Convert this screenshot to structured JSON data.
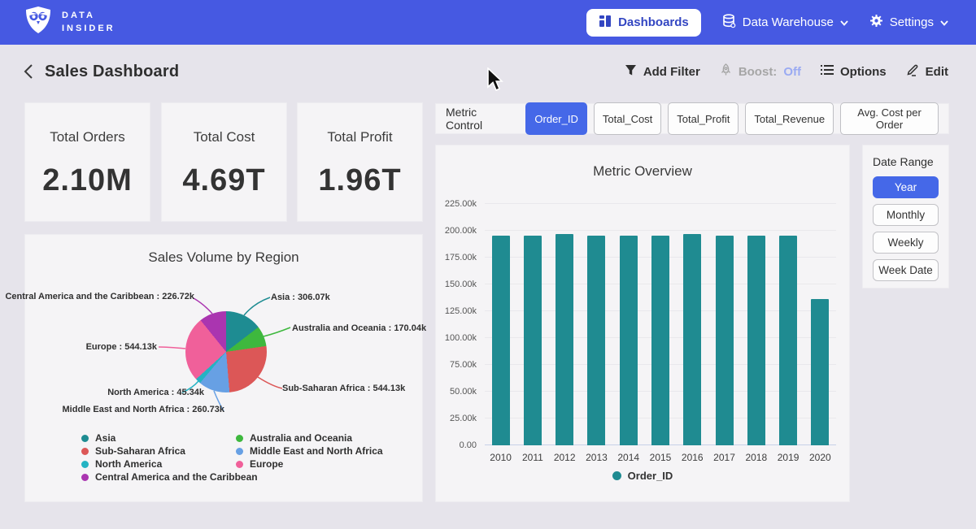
{
  "colors": {
    "nav_blue": "#4659e2",
    "accent_blue": "#4568e8",
    "boost_off": "#9aaaf2",
    "bar_teal": "#1f8b91"
  },
  "nav": {
    "brand": {
      "line1": "DATA",
      "line2": "INSIDER"
    },
    "items": [
      {
        "label": "Dashboards",
        "icon": "dashboard-grid-icon"
      },
      {
        "label": "Data Warehouse",
        "icon": "database-icon"
      },
      {
        "label": "Settings",
        "icon": "gear-icon"
      }
    ]
  },
  "header": {
    "title": "Sales Dashboard",
    "actions": {
      "add_filter": "Add Filter",
      "boost_label": "Boost:",
      "boost_value": "Off",
      "options": "Options",
      "edit": "Edit"
    }
  },
  "kpis": [
    {
      "label": "Total Orders",
      "value": "2.10M"
    },
    {
      "label": "Total Cost",
      "value": "4.69T"
    },
    {
      "label": "Total Profit",
      "value": "1.96T"
    }
  ],
  "metric_control": {
    "label": "Metric Control",
    "options": [
      {
        "label": "Order_ID",
        "selected": true
      },
      {
        "label": "Total_Cost",
        "selected": false
      },
      {
        "label": "Total_Profit",
        "selected": false
      },
      {
        "label": "Total_Revenue",
        "selected": false
      },
      {
        "label": "Avg. Cost per Order",
        "selected": false
      }
    ]
  },
  "date_range": {
    "label": "Date Range",
    "options": [
      {
        "label": "Year",
        "selected": true
      },
      {
        "label": "Monthly",
        "selected": false
      },
      {
        "label": "Weekly",
        "selected": false
      },
      {
        "label": "Week Date",
        "selected": false
      }
    ]
  },
  "chart_data": [
    {
      "type": "bar",
      "title": "Metric Overview",
      "categories": [
        "2010",
        "2011",
        "2012",
        "2013",
        "2014",
        "2015",
        "2016",
        "2017",
        "2018",
        "2019",
        "2020"
      ],
      "series": [
        {
          "name": "Order_ID",
          "color": "#1f8b91",
          "values": [
            195500,
            195400,
            196900,
            195600,
            195400,
            195500,
            197000,
            195700,
            195500,
            195600,
            136300
          ]
        }
      ],
      "xlabel": "",
      "ylabel": "",
      "ylim": [
        0,
        232500
      ],
      "grid": true,
      "legend_position": "bottom",
      "y_ticks": [
        {
          "label": "225.00k",
          "value": 225000
        },
        {
          "label": "200.00k",
          "value": 200000
        },
        {
          "label": "175.00k",
          "value": 175000
        },
        {
          "label": "150.00k",
          "value": 150000
        },
        {
          "label": "125.00k",
          "value": 125000
        },
        {
          "label": "100.00k",
          "value": 100000
        },
        {
          "label": "75.00k",
          "value": 75000
        },
        {
          "label": "50.00k",
          "value": 50000
        },
        {
          "label": "25.00k",
          "value": 25000
        },
        {
          "label": "0.00",
          "value": 0
        }
      ]
    },
    {
      "type": "pie",
      "title": "Sales Volume by Region",
      "start_angle_deg": 0,
      "slices": [
        {
          "label": "Asia",
          "value": 306070,
          "value_label": "306.07k",
          "color": "#1e8c92"
        },
        {
          "label": "Australia and Oceania",
          "value": 170040,
          "value_label": "170.04k",
          "color": "#3eb83e"
        },
        {
          "label": "Sub-Saharan Africa",
          "value": 544130,
          "value_label": "544.13k",
          "color": "#dc5757"
        },
        {
          "label": "Middle East and North Africa",
          "value": 260730,
          "value_label": "260.73k",
          "color": "#67a0e4"
        },
        {
          "label": "North America",
          "value": 45340,
          "value_label": "45.34k",
          "color": "#24b3c3"
        },
        {
          "label": "Europe",
          "value": 544130,
          "value_label": "544.13k",
          "color": "#f0609a"
        },
        {
          "label": "Central America and the Caribbean",
          "value": 226720,
          "value_label": "226.72k",
          "color": "#aa35b0"
        }
      ],
      "label_separator": " : ",
      "legend_columns": [
        [
          "Asia",
          "Sub-Saharan Africa",
          "North America",
          "Central America and the Caribbean"
        ],
        [
          "Australia and Oceania",
          "Middle East and North Africa",
          "Europe"
        ]
      ]
    }
  ]
}
